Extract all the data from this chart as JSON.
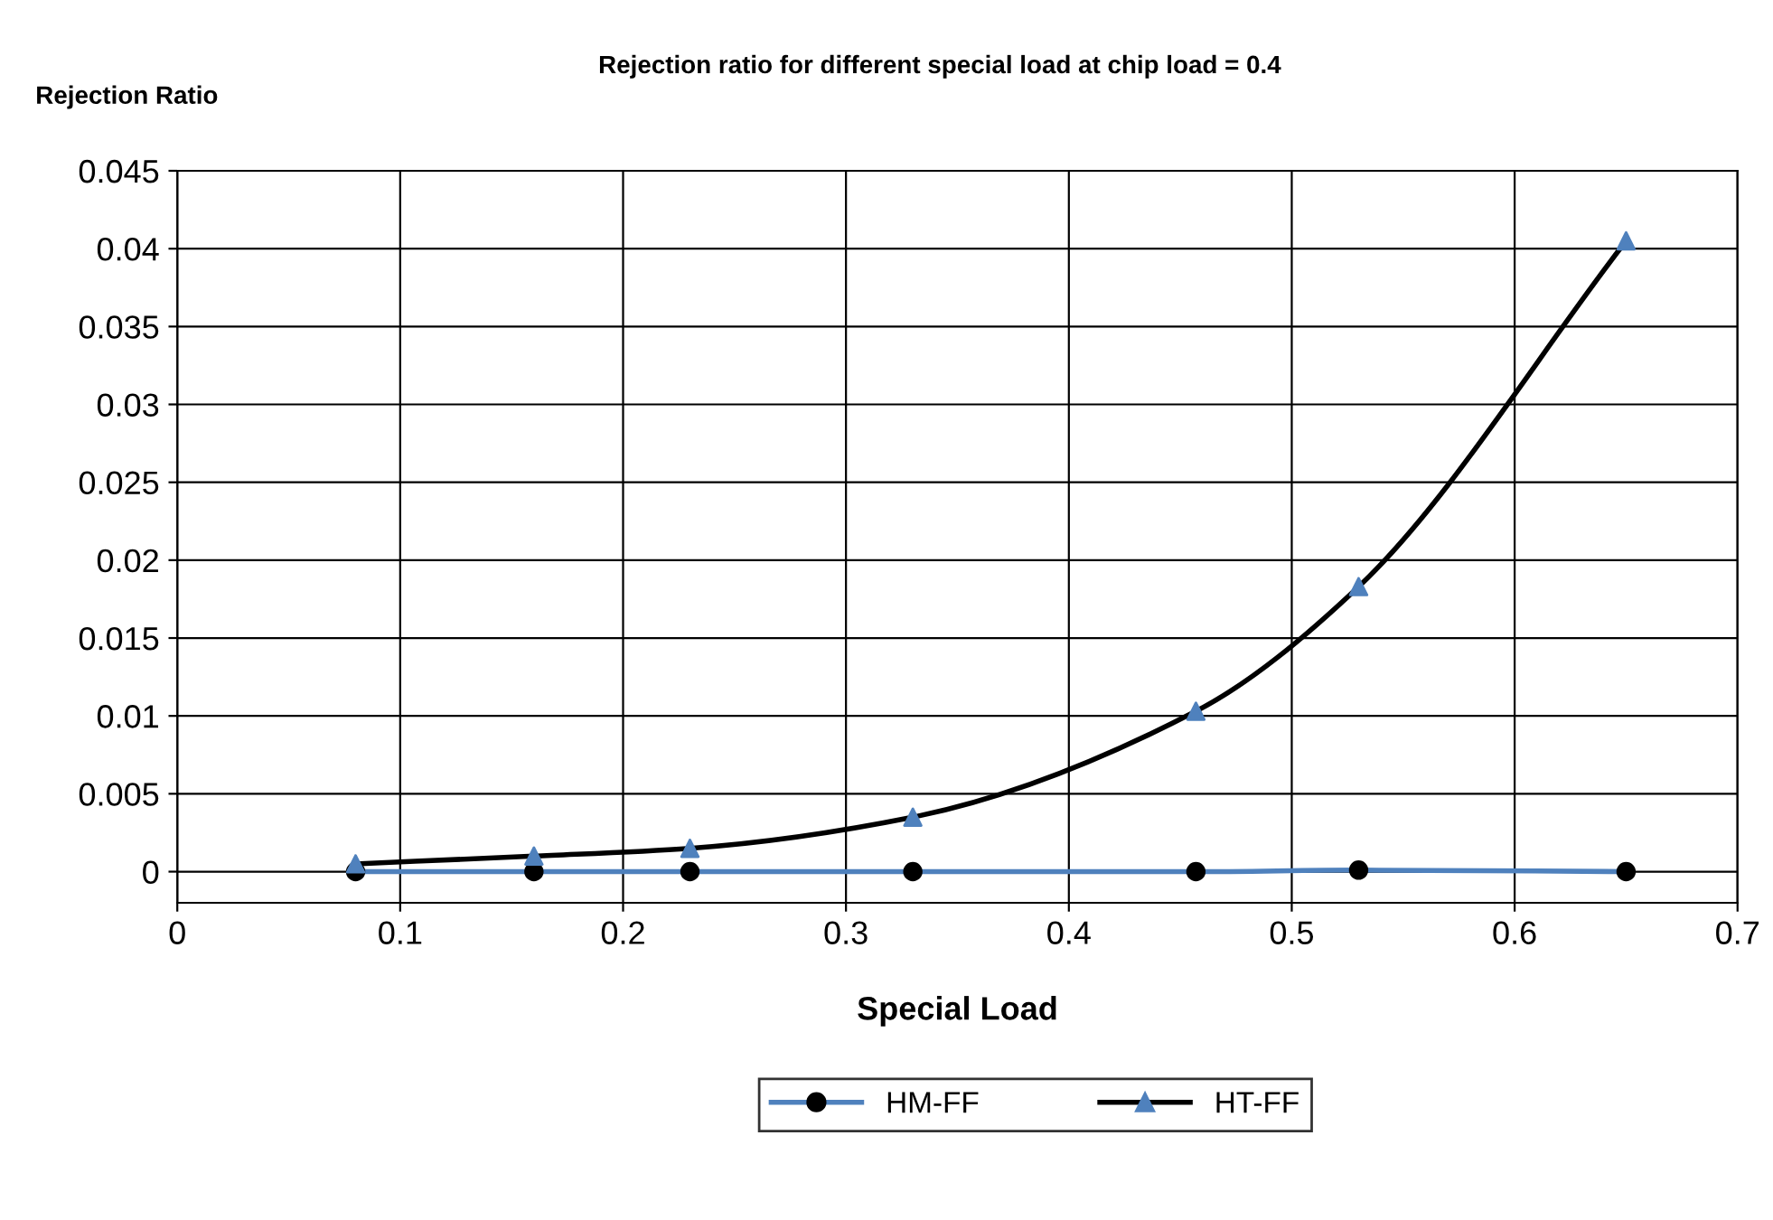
{
  "chart_data": {
    "type": "line",
    "title": "Rejection ratio for different special load at chip load = 0.4",
    "xlabel": "Special Load",
    "ylabel": "Rejection Ratio",
    "x": [
      0.08,
      0.16,
      0.23,
      0.33,
      0.457,
      0.53,
      0.65
    ],
    "series": [
      {
        "name": "HM-FF",
        "color": "#4f81bd",
        "colors": [
          "#000000",
          "#000000",
          "#000000",
          "#000000",
          "#000000",
          "#000000",
          "#000000"
        ],
        "marker": "circle",
        "values": [
          0,
          0,
          0,
          0,
          0,
          0.0001,
          0
        ]
      },
      {
        "name": "HT-FF",
        "color": "#000000",
        "colors": [
          "#4f81bd",
          "#4f81bd",
          "#4f81bd",
          "#4f81bd",
          "#4f81bd",
          "#4f81bd",
          "#4f81bd"
        ],
        "marker": "triangle",
        "values": [
          0.0005,
          0.001,
          0.0015,
          0.0035,
          0.0103,
          0.0183,
          0.0405
        ]
      }
    ],
    "xlim": [
      0,
      0.7
    ],
    "xticks": [
      0,
      0.1,
      0.2,
      0.3,
      0.4,
      0.5,
      0.6,
      0.7
    ],
    "ylim": [
      -0.002,
      0.045
    ],
    "yticks": [
      0,
      0.005,
      0.01,
      0.015,
      0.02,
      0.025,
      0.03,
      0.035,
      0.04,
      0.045
    ],
    "grid": true,
    "legend": "bottom",
    "line_style": "solid"
  }
}
